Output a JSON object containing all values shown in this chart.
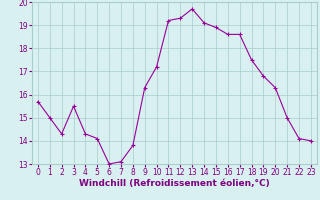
{
  "x": [
    0,
    1,
    2,
    3,
    4,
    5,
    6,
    7,
    8,
    9,
    10,
    11,
    12,
    13,
    14,
    15,
    16,
    17,
    18,
    19,
    20,
    21,
    22,
    23
  ],
  "y": [
    15.7,
    15.0,
    14.3,
    15.5,
    14.3,
    14.1,
    13.0,
    13.1,
    13.8,
    16.3,
    17.2,
    19.2,
    19.3,
    19.7,
    19.1,
    18.9,
    18.6,
    18.6,
    17.5,
    16.8,
    16.3,
    15.0,
    14.1,
    14.0
  ],
  "line_color": "#990099",
  "marker_color": "#990099",
  "bg_color": "#d8f0f0",
  "grid_color": "#aacccc",
  "xlabel": "Windchill (Refroidissement éolien,°C)",
  "ylim": [
    13,
    20
  ],
  "xlim": [
    -0.5,
    23.5
  ],
  "yticks": [
    13,
    14,
    15,
    16,
    17,
    18,
    19,
    20
  ],
  "xticks": [
    0,
    1,
    2,
    3,
    4,
    5,
    6,
    7,
    8,
    9,
    10,
    11,
    12,
    13,
    14,
    15,
    16,
    17,
    18,
    19,
    20,
    21,
    22,
    23
  ],
  "font_color": "#800080",
  "tick_label_size": 5.5,
  "xlabel_size": 6.5
}
